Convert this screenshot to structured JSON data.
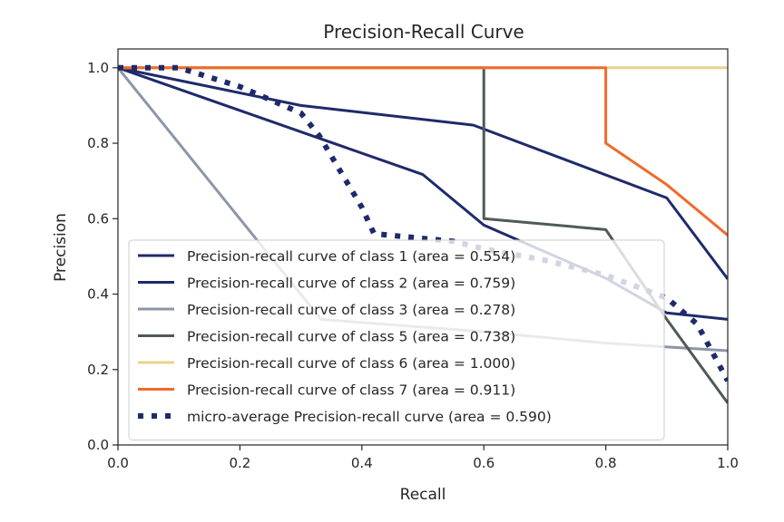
{
  "chart_data": {
    "type": "line",
    "title": "Precision-Recall Curve",
    "xlabel": "Recall",
    "ylabel": "Precision",
    "xlim": [
      0.0,
      1.0
    ],
    "ylim": [
      0.0,
      1.05
    ],
    "xticks": [
      "0.0",
      "0.2",
      "0.4",
      "0.6",
      "0.8",
      "1.0"
    ],
    "yticks": [
      "0.0",
      "0.2",
      "0.4",
      "0.6",
      "0.8",
      "1.0"
    ],
    "grid": false,
    "legend_position": "lower-left",
    "series": [
      {
        "name": "Precision-recall curve of class 1 (area = 0.554)",
        "color": "#1f2a6b",
        "style": "solid",
        "points": [
          [
            0.0,
            1.0
          ],
          [
            0.5,
            0.717
          ],
          [
            0.6,
            0.583
          ],
          [
            0.8,
            0.442
          ],
          [
            0.9,
            0.35
          ],
          [
            1.0,
            0.333
          ]
        ]
      },
      {
        "name": "Precision-recall curve of class 2 (area = 0.759)",
        "color": "#1f2a6b",
        "style": "solid",
        "points": [
          [
            0.0,
            1.0
          ],
          [
            0.3,
            0.9
          ],
          [
            0.583,
            0.848
          ],
          [
            0.9,
            0.655
          ],
          [
            1.0,
            0.44
          ]
        ]
      },
      {
        "name": "Precision-recall curve of class 3 (area = 0.278)",
        "color": "#8c96a6",
        "style": "solid",
        "points": [
          [
            0.0,
            1.0
          ],
          [
            0.333,
            0.333
          ],
          [
            0.6,
            0.3
          ],
          [
            0.8,
            0.27
          ],
          [
            1.0,
            0.25
          ]
        ]
      },
      {
        "name": "Precision-recall curve of class 5 (area = 0.738)",
        "color": "#4e5a58",
        "style": "solid",
        "points": [
          [
            0.0,
            1.0
          ],
          [
            0.6,
            1.0
          ],
          [
            0.6,
            0.6
          ],
          [
            0.8,
            0.571
          ],
          [
            0.9,
            0.333
          ],
          [
            1.0,
            0.111
          ]
        ]
      },
      {
        "name": "Precision-recall curve of class 6 (area = 1.000)",
        "color": "#e8d48a",
        "style": "solid",
        "points": [
          [
            0.0,
            1.0
          ],
          [
            1.0,
            1.0
          ]
        ]
      },
      {
        "name": "Precision-recall curve of class 7 (area = 0.911)",
        "color": "#f26a2a",
        "style": "solid",
        "points": [
          [
            0.0,
            1.0
          ],
          [
            0.8,
            1.0
          ],
          [
            0.8,
            0.8
          ],
          [
            0.9,
            0.69
          ],
          [
            1.0,
            0.556
          ]
        ]
      },
      {
        "name": "micro-average Precision-recall curve (area = 0.590)",
        "color": "#1f2a6b",
        "style": "dotted",
        "points": [
          [
            0.0,
            1.0
          ],
          [
            0.1,
            1.0
          ],
          [
            0.2,
            0.95
          ],
          [
            0.3,
            0.88
          ],
          [
            0.33,
            0.82
          ],
          [
            0.4,
            0.63
          ],
          [
            0.42,
            0.56
          ],
          [
            0.55,
            0.54
          ],
          [
            0.6,
            0.52
          ],
          [
            0.7,
            0.49
          ],
          [
            0.8,
            0.45
          ],
          [
            0.9,
            0.39
          ],
          [
            0.95,
            0.32
          ],
          [
            1.0,
            0.17
          ]
        ]
      }
    ]
  }
}
